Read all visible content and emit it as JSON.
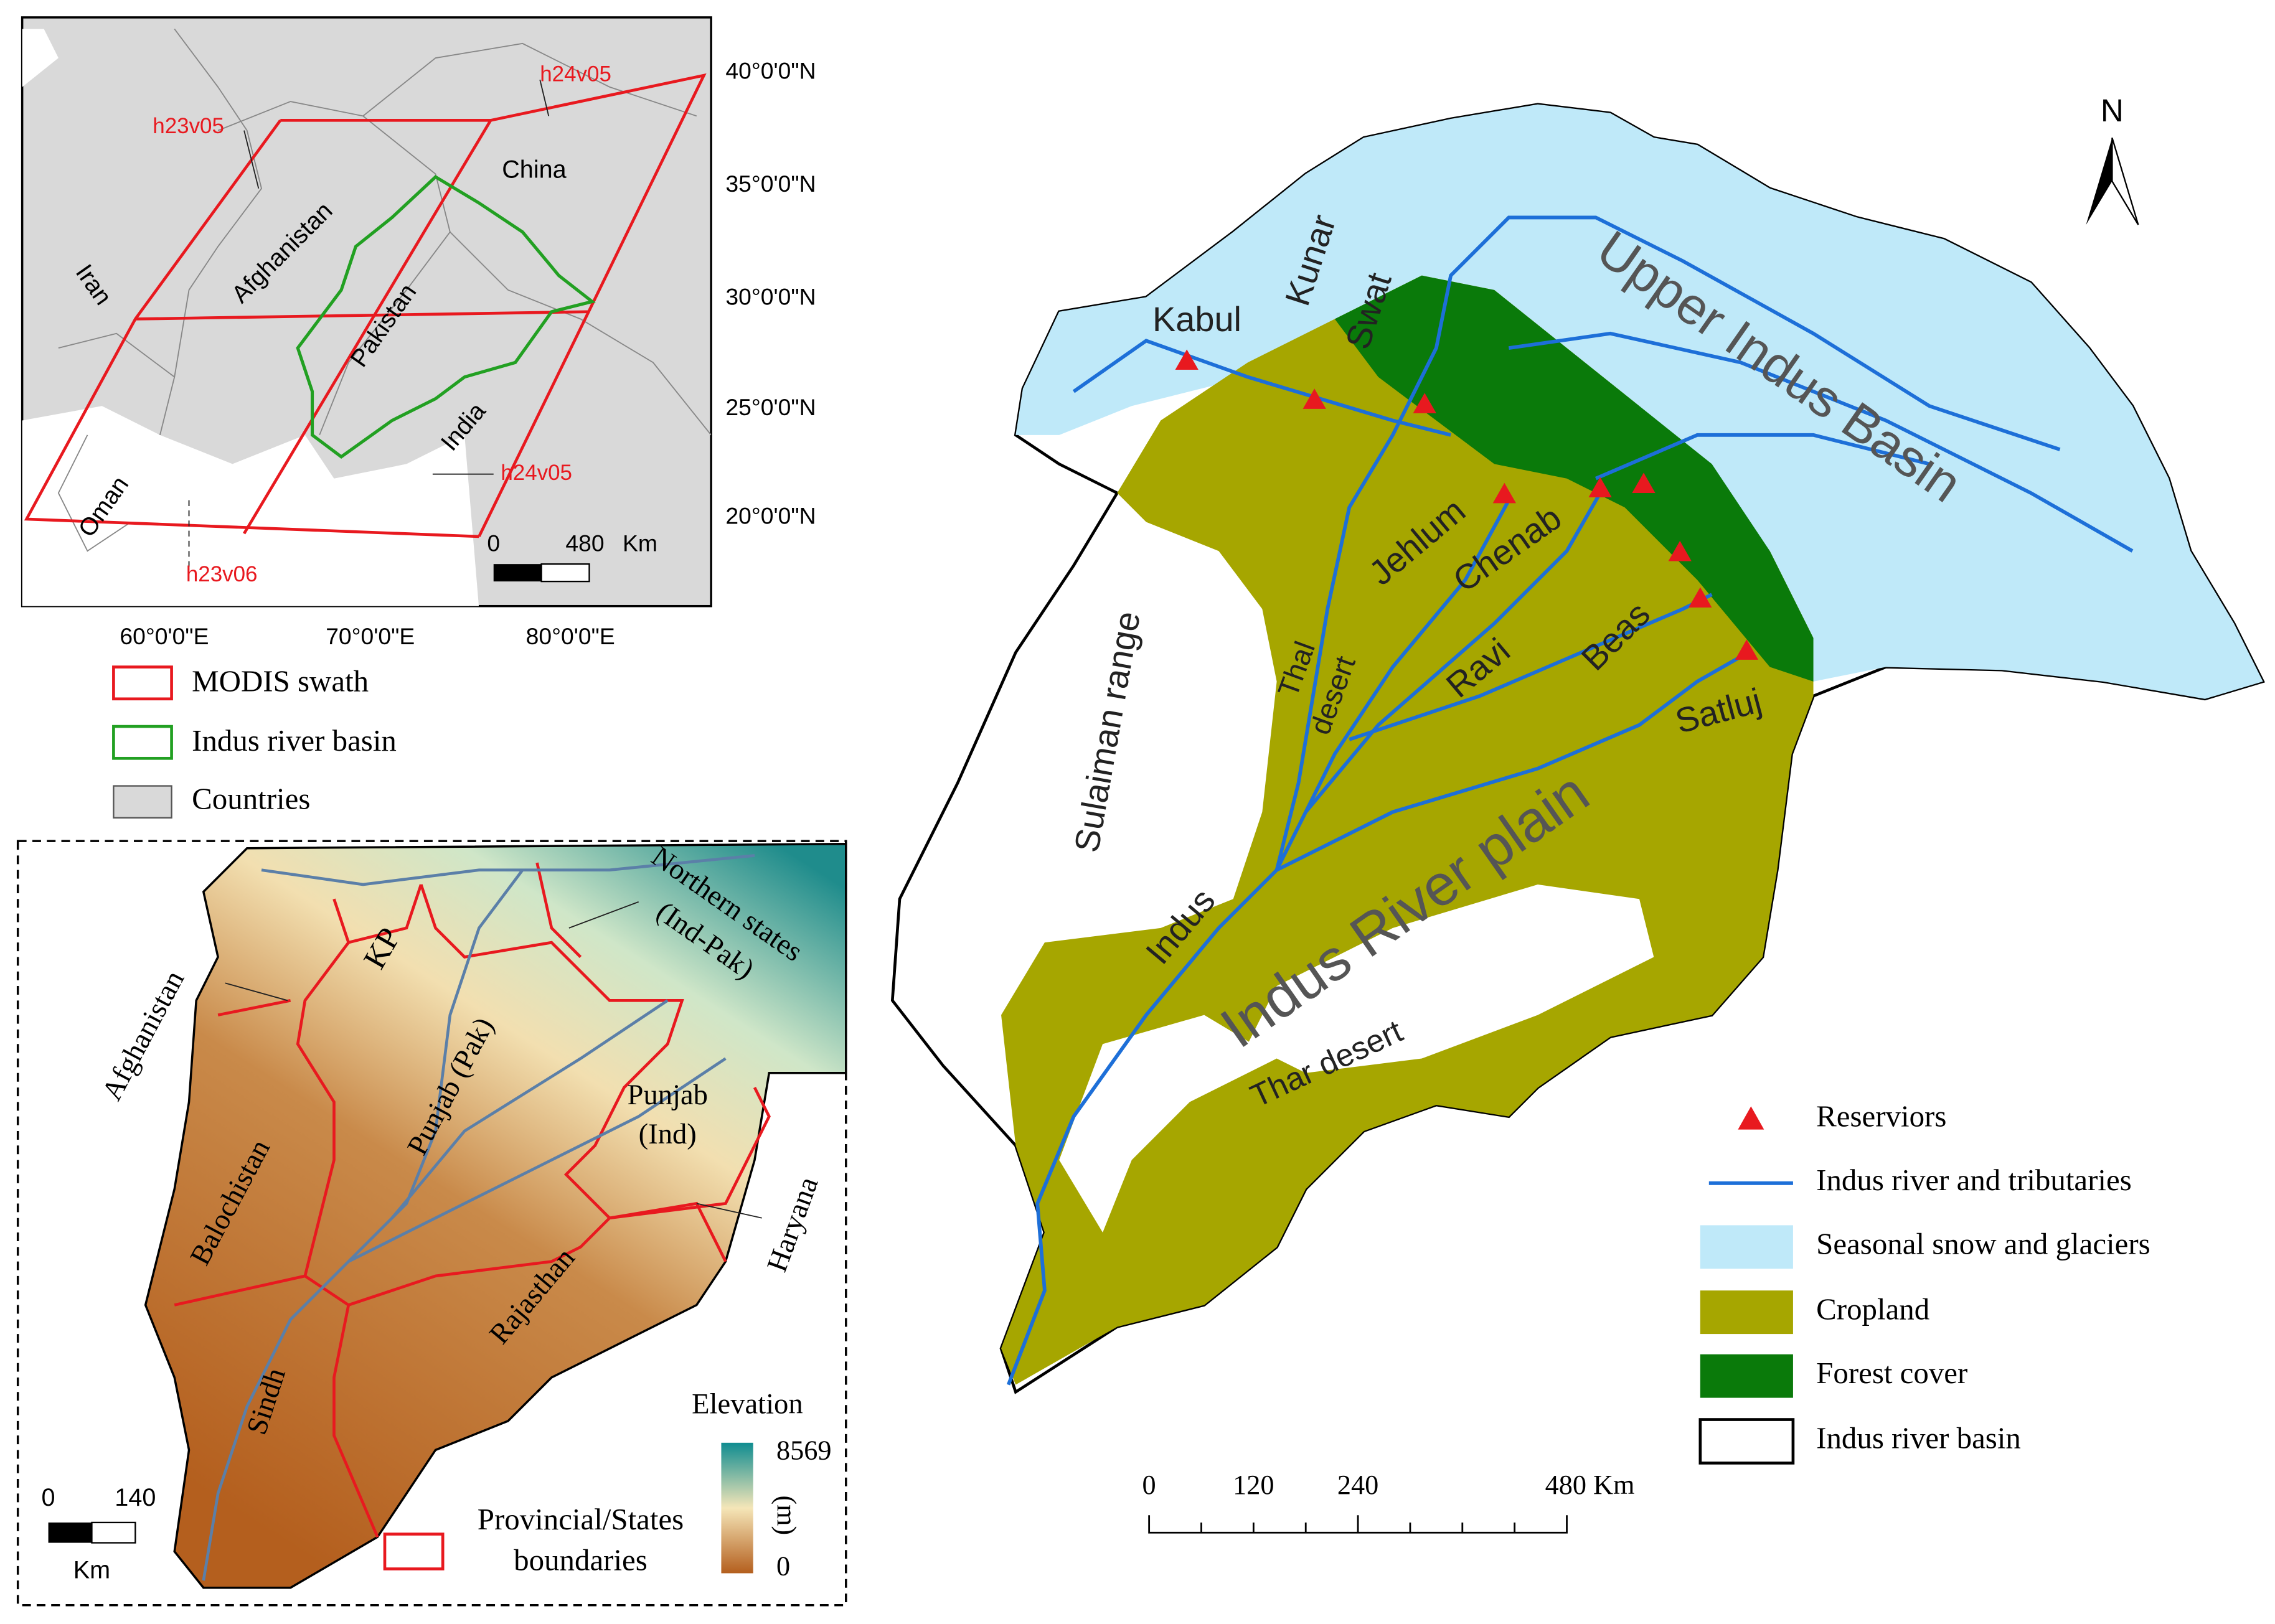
{
  "inset_map": {
    "lat_labels": [
      "40°0'0\"N",
      "35°0'0\"N",
      "30°0'0\"N",
      "25°0'0\"N",
      "20°0'0\"N"
    ],
    "lon_labels": [
      "60°0'0\"E",
      "70°0'0\"E",
      "80°0'0\"E"
    ],
    "country_labels": [
      "Iran",
      "Afghanistan",
      "Pakistan",
      "China",
      "India",
      "Oman"
    ],
    "tile_labels": [
      "h24v05",
      "h23v05",
      "h24v05",
      "h23v06"
    ],
    "scale_bar": [
      "0",
      "480",
      "Km"
    ]
  },
  "inset_legend": [
    "MODIS swath",
    "Indus river basin",
    "Countries"
  ],
  "elevation_map": {
    "region_labels": {
      "kp": "KP",
      "northern_states": [
        "Northern states",
        "(Ind-Pak)"
      ],
      "afghanistan": "Afghanistan",
      "balochistan": "Balochistan",
      "punjab_pak": "Punjab (Pak)",
      "punjab_ind": [
        "Punjab",
        "(Ind)"
      ],
      "haryana": "Haryana",
      "rajasthan": "Rajasthan",
      "sindh": "Sindh"
    },
    "elevation_title": "Elevation",
    "elevation_unit": "(m)",
    "elevation_max": "8569",
    "elevation_min": "0",
    "scale_bar": [
      "0",
      "140",
      "Km"
    ],
    "boundary_legend": [
      "Provincial/States",
      "boundaries"
    ]
  },
  "main_map": {
    "north": "N",
    "labels": {
      "kabul": "Kabul",
      "kunar": "Kunar",
      "swat": "Swat",
      "upper_indus": "Upper Indus Basin",
      "jehlum": "Jehlum",
      "chenab": "Chenab",
      "thal": [
        "Thal",
        "desert"
      ],
      "ravi": "Ravi",
      "beas": "Beas",
      "satluj": "Satluj",
      "sulaiman": "Sulaiman range",
      "indus_plain": "Indus River plain",
      "indus": "Indus",
      "thar": "Thar desert"
    },
    "scale_bar": [
      "0",
      "120",
      "240",
      "480 Km"
    ]
  },
  "main_legend": [
    "Reserviors",
    "Indus river and tributaries",
    "Seasonal snow and glaciers",
    "Cropland",
    "Forest cover",
    "Indus river basin"
  ]
}
